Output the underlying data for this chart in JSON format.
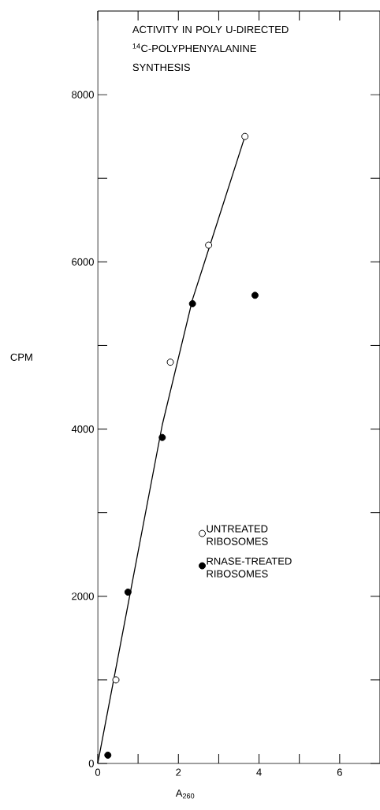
{
  "chart_data": {
    "type": "scatter",
    "title": "ACTIVITY IN POLY U-DIRECTED $^{14}$C-POLYPHENYALANINE SYNTHESIS",
    "xlabel": "A$_{260}$",
    "ylabel": "CPM",
    "xlim": [
      0,
      7
    ],
    "ylim": [
      0,
      9000
    ],
    "xticks": [
      0,
      {
        "value": 1,
        "label": null
      },
      2,
      {
        "value": 3,
        "label": null
      },
      4,
      {
        "value": 5,
        "label": null
      },
      6
    ],
    "yticks": [
      0,
      {
        "value": 1000,
        "label": null
      },
      2000,
      {
        "value": 3000,
        "label": null
      },
      4000,
      {
        "value": 5000,
        "label": null
      },
      6000,
      {
        "value": 7000,
        "label": null
      },
      8000
    ],
    "legend": "right",
    "grid": false,
    "series": [
      {
        "name": "UNTREATED RIBOSOMES",
        "color": "#ffffff",
        "marker": "circle",
        "x": [
          0.45,
          1.8,
          2.75,
          3.65
        ],
        "values": [
          1000,
          4800,
          6200,
          7500
        ]
      },
      {
        "name": "RNASE-TREATED RIBOSOMES",
        "color": "#000000",
        "marker": "circle",
        "x": [
          0.25,
          0.75,
          1.6,
          2.35,
          3.9
        ],
        "values": [
          100,
          2050,
          3900,
          5500,
          5600
        ]
      },
      {
        "type": "line",
        "color": "#000000",
        "marker": "none",
        "x": [
          0,
          1.6,
          2.35,
          3.65
        ],
        "values": [
          0,
          4050,
          5550,
          7500
        ]
      }
    ]
  }
}
